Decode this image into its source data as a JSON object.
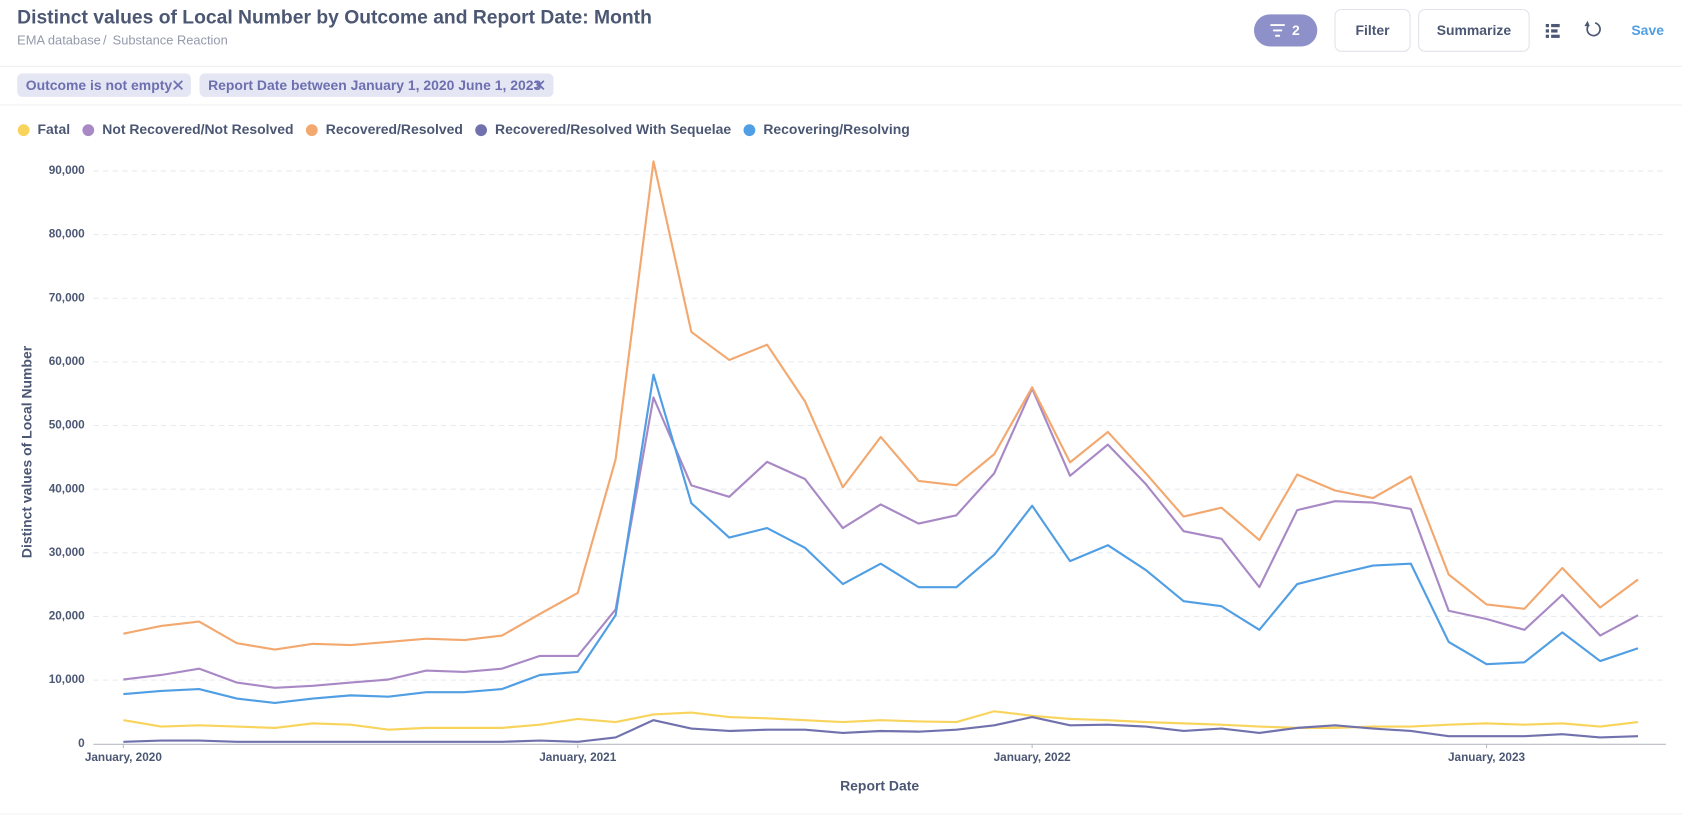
{
  "header": {
    "title": "Distinct values of Local Number by Outcome and Report Date: Month",
    "breadcrumbs": [
      "EMA database",
      "Substance Reaction"
    ],
    "breadcrumb_separator": "/",
    "filter_count": "2",
    "buttons": [
      "Filter",
      "Summarize"
    ],
    "save": "Save"
  },
  "filters": [
    "Outcome is not empty",
    "Report Date between January 1, 2020 June 1, 2023"
  ],
  "chart_data": {
    "type": "line",
    "x_label": "Report Date",
    "y_label": "Distinct values of Local Number",
    "x": [
      "2020-01",
      "2020-02",
      "2020-03",
      "2020-04",
      "2020-05",
      "2020-06",
      "2020-07",
      "2020-08",
      "2020-09",
      "2020-10",
      "2020-11",
      "2020-12",
      "2021-01",
      "2021-02",
      "2021-03",
      "2021-04",
      "2021-05",
      "2021-06",
      "2021-07",
      "2021-08",
      "2021-09",
      "2021-10",
      "2021-11",
      "2021-12",
      "2022-01",
      "2022-02",
      "2022-03",
      "2022-04",
      "2022-05",
      "2022-06",
      "2022-07",
      "2022-08",
      "2022-09",
      "2022-10",
      "2022-11",
      "2022-12",
      "2023-01",
      "2023-02",
      "2023-03",
      "2023-04",
      "2023-05"
    ],
    "xticks": [
      {
        "value": "2020-01",
        "label": "January, 2020"
      },
      {
        "value": "2021-01",
        "label": "January, 2021"
      },
      {
        "value": "2022-01",
        "label": "January, 2022"
      },
      {
        "value": "2023-01",
        "label": "January, 2023"
      }
    ],
    "ylim": [
      0,
      90000
    ],
    "yticks": [
      0,
      {
        "value": 10000,
        "label": "10,000"
      },
      {
        "value": 20000,
        "label": "20,000"
      },
      {
        "value": 30000,
        "label": "30,000"
      },
      {
        "value": 40000,
        "label": "40,000"
      },
      {
        "value": 50000,
        "label": "50,000"
      },
      {
        "value": 60000,
        "label": "60,000"
      },
      {
        "value": 70000,
        "label": "70,000"
      },
      {
        "value": 80000,
        "label": "80,000"
      },
      {
        "value": 90000,
        "label": "90,000"
      }
    ],
    "grid": true,
    "series": [
      {
        "name": "Fatal",
        "color": "#f9d45c",
        "values": [
          3700,
          2700,
          2900,
          2700,
          2500,
          3200,
          3000,
          2200,
          2500,
          2500,
          2500,
          3000,
          3900,
          3400,
          4600,
          4900,
          4200,
          4000,
          3700,
          3400,
          3700,
          3500,
          3400,
          5100,
          4400,
          3900,
          3700,
          3400,
          3200,
          3000,
          2700,
          2500,
          2500,
          2700,
          2700,
          3000,
          3200,
          3000,
          3200,
          2700,
          3400
        ]
      },
      {
        "name": "Not Recovered/Not Resolved",
        "color": "#a989c5",
        "values": [
          10100,
          10800,
          11800,
          9600,
          8800,
          9100,
          9600,
          10100,
          11500,
          11300,
          11800,
          13800,
          13800,
          21100,
          54400,
          40600,
          38800,
          44300,
          41600,
          33900,
          37600,
          34600,
          35900,
          42500,
          55800,
          42100,
          47000,
          40800,
          33400,
          32200,
          24600,
          36700,
          38100,
          37900,
          36900,
          20900,
          19600,
          17900,
          23400,
          17000,
          20200
        ]
      },
      {
        "name": "Recovered/Resolved",
        "color": "#f2a86f",
        "values": [
          17300,
          18500,
          19200,
          15800,
          14800,
          15700,
          15500,
          16000,
          16500,
          16300,
          17000,
          20400,
          23700,
          44700,
          91500,
          64700,
          60300,
          62700,
          53800,
          40300,
          48200,
          41300,
          40600,
          45500,
          56000,
          44200,
          49000,
          42500,
          35700,
          37100,
          32000,
          42300,
          39800,
          38600,
          42000,
          26600,
          21900,
          21200,
          27600,
          21400,
          25800
        ]
      },
      {
        "name": "Recovered/Resolved With Sequelae",
        "color": "#7172ad",
        "values": [
          300,
          500,
          500,
          300,
          300,
          300,
          300,
          300,
          300,
          300,
          300,
          500,
          300,
          1000,
          3700,
          2400,
          2000,
          2200,
          2200,
          1700,
          2000,
          1900,
          2200,
          2900,
          4200,
          2900,
          3000,
          2700,
          2000,
          2400,
          1700,
          2500,
          2900,
          2400,
          2000,
          1200,
          1200,
          1200,
          1500,
          1000,
          1200
        ]
      },
      {
        "name": "Recovering/Resolving",
        "color": "#509ee3",
        "values": [
          7800,
          8300,
          8600,
          7100,
          6400,
          7100,
          7600,
          7400,
          8100,
          8100,
          8600,
          10800,
          11300,
          20200,
          58000,
          37800,
          32400,
          33900,
          30800,
          25100,
          28300,
          24600,
          24600,
          29700,
          37400,
          28700,
          31200,
          27300,
          22400,
          21600,
          17900,
          25100,
          26600,
          28000,
          28300,
          16000,
          12500,
          12800,
          17500,
          13000,
          15000
        ]
      }
    ]
  }
}
